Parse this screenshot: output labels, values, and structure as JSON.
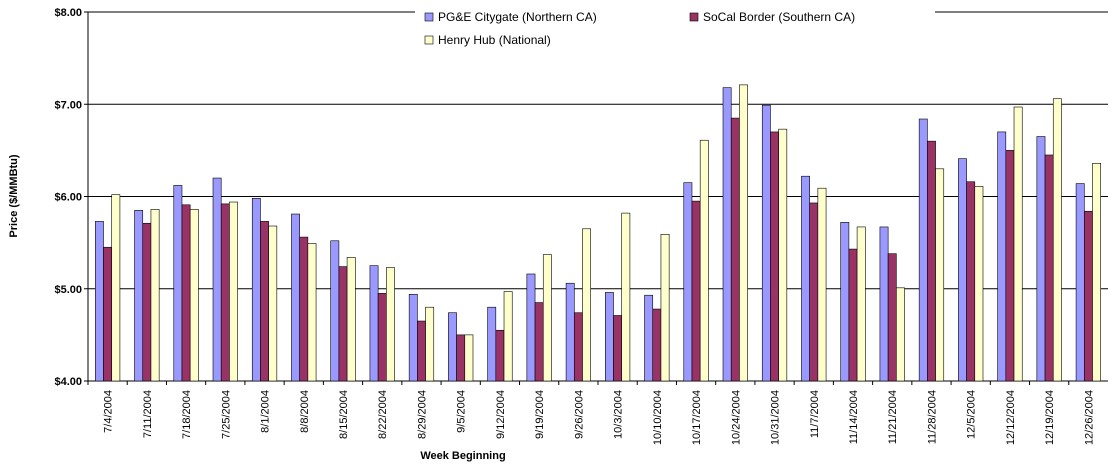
{
  "chart_data": {
    "type": "bar",
    "x_label": "Week Beginning",
    "y_label": "Price ($/MMBtu)",
    "categories": [
      "7/4/2004",
      "7/11/2004",
      "7/18/2004",
      "7/25/2004",
      "8/1/2004",
      "8/8/2004",
      "8/15/2004",
      "8/22/2004",
      "8/29/2004",
      "9/5/2004",
      "9/12/2004",
      "9/19/2004",
      "9/26/2004",
      "10/3/2004",
      "10/10/2004",
      "10/17/2004",
      "10/24/2004",
      "10/31/2004",
      "11/7/2004",
      "11/14/2004",
      "11/21/2004",
      "11/28/2004",
      "12/5/2004",
      "12/12/2004",
      "12/19/2004",
      "12/26/2004"
    ],
    "series": [
      {
        "name": "PG&E Citygate (Northern CA)",
        "color": "#9999ff",
        "values": [
          5.73,
          5.85,
          6.12,
          6.2,
          5.98,
          5.81,
          5.52,
          5.25,
          4.94,
          4.74,
          4.8,
          5.16,
          5.06,
          4.96,
          4.93,
          6.15,
          7.18,
          6.99,
          6.22,
          5.72,
          5.67,
          6.84,
          6.41,
          6.7,
          6.65,
          6.14
        ]
      },
      {
        "name": "SoCal Border (Southern CA)",
        "color": "#993366",
        "values": [
          5.45,
          5.71,
          5.91,
          5.92,
          5.73,
          5.56,
          5.24,
          4.95,
          4.65,
          4.5,
          4.55,
          4.85,
          4.74,
          4.71,
          4.78,
          5.95,
          6.85,
          6.7,
          5.93,
          5.43,
          5.38,
          6.6,
          6.16,
          6.5,
          6.45,
          5.84
        ]
      },
      {
        "name": "Henry Hub (National)",
        "color": "#ffffcc",
        "values": [
          6.02,
          5.86,
          5.86,
          5.94,
          5.68,
          5.49,
          5.34,
          5.23,
          4.8,
          4.5,
          4.97,
          5.37,
          5.65,
          5.82,
          5.59,
          6.61,
          7.21,
          6.73,
          6.09,
          5.67,
          5.01,
          6.3,
          6.11,
          6.97,
          7.06,
          6.36
        ]
      }
    ],
    "ylim": [
      4,
      8
    ],
    "yticks": [
      {
        "value": 4,
        "label": "$4.00"
      },
      {
        "value": 5,
        "label": "$5.00"
      },
      {
        "value": 6,
        "label": "$6.00"
      },
      {
        "value": 7,
        "label": "$7.00"
      },
      {
        "value": 8,
        "label": "$8.00"
      }
    ],
    "grid": true,
    "legend": "top"
  }
}
